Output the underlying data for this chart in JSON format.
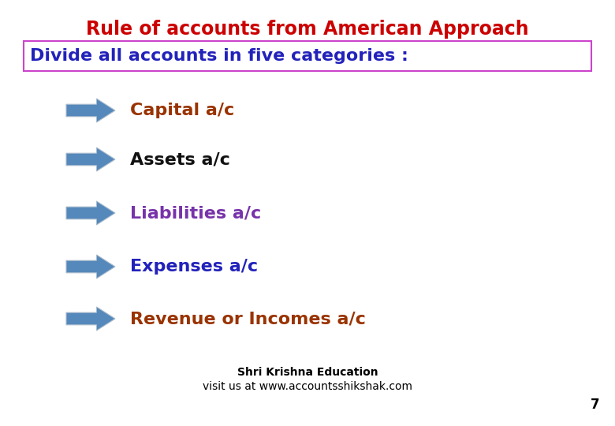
{
  "title": "Rule of accounts from American Approach",
  "title_color": "#cc0000",
  "subtitle": "Divide all accounts in five categories :",
  "subtitle_color": "#2222bb",
  "subtitle_box_color": "#cc44cc",
  "bg_color": "#ffffff",
  "items": [
    {
      "text": "Capital a/c",
      "color": "#993300"
    },
    {
      "text": "Assets a/c",
      "color": "#111111"
    },
    {
      "text": "Liabilities a/c",
      "color": "#7733aa"
    },
    {
      "text": "Expenses a/c",
      "color": "#2222bb"
    },
    {
      "text": "Revenue or Incomes a/c",
      "color": "#993300"
    }
  ],
  "arrow_color": "#5588bb",
  "footer1": "Shri Krishna Education",
  "footer2": "visit us at www.accountsshikshak.com",
  "page_num": "7",
  "title_fontsize": 17,
  "subtitle_fontsize": 16,
  "item_fontsize": 16,
  "footer_fontsize": 10
}
